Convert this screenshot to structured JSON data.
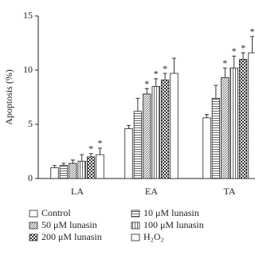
{
  "chart_data": {
    "type": "bar",
    "y_label": "Apoptosis (%)",
    "categories": [
      "LA",
      "EA",
      "TA"
    ],
    "ylim": [
      0,
      15
    ],
    "yticks": [
      0,
      5,
      10,
      15
    ],
    "series": [
      {
        "name": "Control",
        "color": "#ffffff",
        "pattern": "none",
        "values": [
          1.0,
          4.6,
          5.6
        ],
        "errors": [
          0.2,
          0.3,
          0.3
        ],
        "marks": [
          null,
          null,
          null
        ]
      },
      {
        "name": "10 μM lunasin",
        "color": "#ffffff",
        "pattern": "hlines",
        "values": [
          1.2,
          6.2,
          7.4
        ],
        "errors": [
          0.2,
          1.2,
          1.2
        ],
        "marks": [
          null,
          null,
          null
        ]
      },
      {
        "name": "50 μM lunasin",
        "color": "#ffffff",
        "pattern": "diag",
        "values": [
          1.4,
          7.8,
          9.3
        ],
        "errors": [
          0.3,
          0.5,
          0.9
        ],
        "marks": [
          null,
          "*",
          "*"
        ]
      },
      {
        "name": "100 μM lunasin",
        "color": "#ffffff",
        "pattern": "vlines",
        "values": [
          1.6,
          8.5,
          10.2
        ],
        "errors": [
          0.6,
          0.7,
          1.1
        ],
        "marks": [
          null,
          "*",
          "*"
        ]
      },
      {
        "name": "200 μM lunasin",
        "color": "#ffffff",
        "pattern": "checker",
        "values": [
          2.0,
          9.1,
          11.0
        ],
        "errors": [
          0.3,
          0.6,
          0.6
        ],
        "marks": [
          "*",
          "*",
          "*"
        ]
      },
      {
        "name": "H₂O₂",
        "color": "#ffffff",
        "pattern": "none",
        "values": [
          2.2,
          9.7,
          11.6
        ],
        "errors": [
          0.6,
          1.4,
          1.5
        ],
        "marks": [
          "*",
          null,
          "*"
        ]
      }
    ]
  }
}
